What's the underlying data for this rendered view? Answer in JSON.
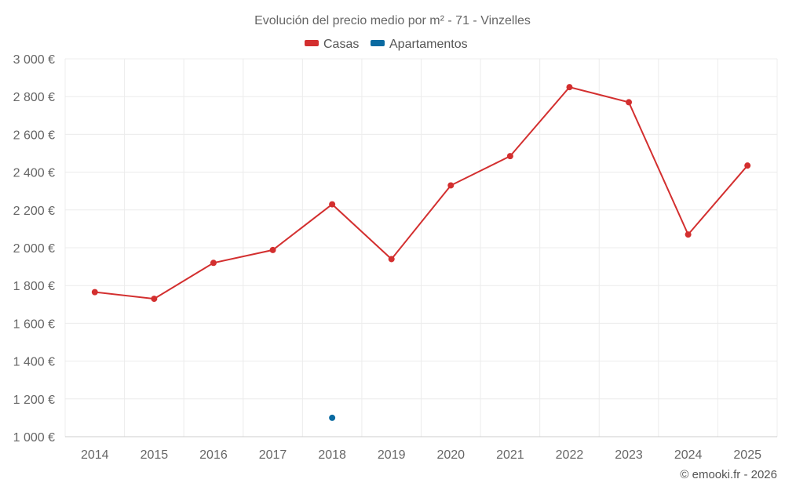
{
  "chart_data": {
    "type": "line",
    "title": "Evolución del precio medio por m² - 71 - Vinzelles",
    "categories": [
      "2014",
      "2015",
      "2016",
      "2017",
      "2018",
      "2019",
      "2020",
      "2021",
      "2022",
      "2023",
      "2024",
      "2025"
    ],
    "series": [
      {
        "name": "Casas",
        "color": "#d32f2f",
        "values": [
          1765,
          1730,
          1920,
          1988,
          2230,
          1940,
          2330,
          2485,
          2850,
          2770,
          2070,
          2435
        ]
      },
      {
        "name": "Apartamentos",
        "color": "#0a6aa1",
        "values": [
          null,
          null,
          null,
          null,
          1100,
          null,
          null,
          null,
          null,
          null,
          null,
          null
        ]
      }
    ],
    "ylim": [
      1000,
      3000
    ],
    "yticks": [
      1000,
      1200,
      1400,
      1600,
      1800,
      2000,
      2200,
      2400,
      2600,
      2800,
      3000
    ],
    "ytick_labels": [
      "1 000 €",
      "1 200 €",
      "1 400 €",
      "1 600 €",
      "1 800 €",
      "2 000 €",
      "2 200 €",
      "2 400 €",
      "2 600 €",
      "2 800 €",
      "3 000 €"
    ],
    "legend": "top-center",
    "grid": true
  },
  "credit": "© emooki.fr - 2026"
}
